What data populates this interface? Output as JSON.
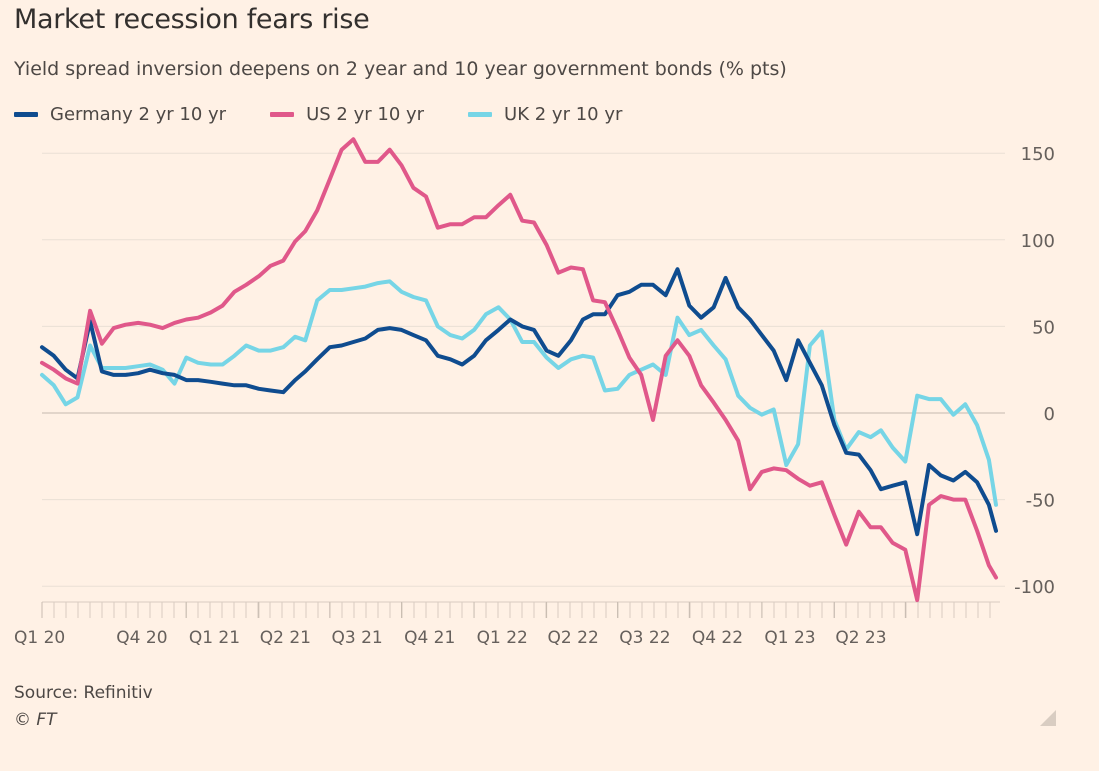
{
  "header": {
    "title": "Market recession fears rise",
    "subtitle": "Yield spread inversion deepens on 2 year and 10 year government bonds (% pts)"
  },
  "footer": {
    "source": "Source: Refinitiv",
    "copyright": "© FT"
  },
  "chart_data": {
    "type": "line",
    "title": "Market recession fears rise",
    "subtitle": "Yield spread inversion deepens on 2 year and 10 year government bonds (% pts)",
    "xlabel": "",
    "ylabel": "",
    "ylim": [
      -110,
      160
    ],
    "yticks": [
      150,
      100,
      50,
      0,
      -50,
      -100
    ],
    "grid": true,
    "legend_position": "top-left",
    "y_axis_side": "right",
    "xticks": [
      {
        "label": "Q1 20",
        "date": "2020-04-01"
      },
      {
        "label": "Q4 20",
        "date": "2020-10-01"
      },
      {
        "label": "Q1 21",
        "date": "2021-01-01"
      },
      {
        "label": "Q2 21",
        "date": "2021-04-01"
      },
      {
        "label": "Q3 21",
        "date": "2021-07-01"
      },
      {
        "label": "Q4 21",
        "date": "2021-10-01"
      },
      {
        "label": "Q1 22",
        "date": "2022-01-01"
      },
      {
        "label": "Q2 22",
        "date": "2022-04-01"
      },
      {
        "label": "Q3 22",
        "date": "2022-07-01"
      },
      {
        "label": "Q4 22",
        "date": "2022-10-01"
      },
      {
        "label": "Q1 23",
        "date": "2023-01-01"
      },
      {
        "label": "Q2 23",
        "date": "2023-04-01"
      }
    ],
    "x": [
      "2020-04-01",
      "2020-04-16",
      "2020-05-01",
      "2020-05-16",
      "2020-06-01",
      "2020-06-16",
      "2020-07-01",
      "2020-07-16",
      "2020-08-01",
      "2020-08-16",
      "2020-09-01",
      "2020-09-16",
      "2020-10-01",
      "2020-10-16",
      "2020-11-01",
      "2020-11-16",
      "2020-12-01",
      "2020-12-16",
      "2021-01-01",
      "2021-01-16",
      "2021-02-01",
      "2021-02-16",
      "2021-03-01",
      "2021-03-16",
      "2021-04-01",
      "2021-04-16",
      "2021-05-01",
      "2021-05-16",
      "2021-06-01",
      "2021-06-16",
      "2021-07-01",
      "2021-07-16",
      "2021-08-01",
      "2021-08-16",
      "2021-09-01",
      "2021-09-16",
      "2021-10-01",
      "2021-10-16",
      "2021-11-01",
      "2021-11-16",
      "2021-12-01",
      "2021-12-16",
      "2022-01-01",
      "2022-01-16",
      "2022-02-01",
      "2022-02-16",
      "2022-03-01",
      "2022-03-16",
      "2022-04-01",
      "2022-04-16",
      "2022-05-01",
      "2022-05-16",
      "2022-06-01",
      "2022-06-16",
      "2022-07-01",
      "2022-07-16",
      "2022-08-01",
      "2022-08-16",
      "2022-09-01",
      "2022-09-16",
      "2022-10-01",
      "2022-10-16",
      "2022-11-01",
      "2022-11-16",
      "2022-12-01",
      "2022-12-16",
      "2023-01-01",
      "2023-01-16",
      "2023-02-01",
      "2023-02-16",
      "2023-03-01",
      "2023-03-16",
      "2023-04-01",
      "2023-04-16",
      "2023-05-01",
      "2023-05-16",
      "2023-06-01",
      "2023-06-16",
      "2023-07-01",
      "2023-07-16",
      "2023-07-25"
    ],
    "series": [
      {
        "name": "Germany 2 yr 10 yr",
        "color": "#0f4c8f",
        "values": [
          38,
          33,
          25,
          20,
          53,
          24,
          22,
          22,
          23,
          25,
          23,
          22,
          19,
          19,
          18,
          17,
          16,
          16,
          14,
          13,
          12,
          19,
          24,
          31,
          38,
          39,
          41,
          43,
          48,
          49,
          48,
          45,
          42,
          33,
          31,
          28,
          33,
          42,
          48,
          54,
          50,
          48,
          36,
          33,
          42,
          54,
          57,
          57,
          68,
          70,
          74,
          74,
          68,
          83,
          62,
          55,
          61,
          78,
          61,
          54,
          45,
          36,
          19,
          42,
          29,
          16,
          -7,
          -23,
          -24,
          -33,
          -44,
          -42,
          -40,
          -70,
          -30,
          -36,
          -39,
          -34,
          -40,
          -53,
          -68
        ]
      },
      {
        "name": "US 2 yr 10 yr",
        "color": "#e0588a",
        "values": [
          29,
          25,
          20,
          17,
          59,
          40,
          49,
          51,
          52,
          51,
          49,
          52,
          54,
          55,
          58,
          62,
          70,
          74,
          79,
          85,
          88,
          99,
          105,
          117,
          135,
          152,
          158,
          145,
          145,
          152,
          143,
          130,
          125,
          107,
          109,
          109,
          113,
          113,
          120,
          126,
          111,
          110,
          97,
          81,
          84,
          83,
          65,
          64,
          48,
          32,
          22,
          -4,
          33,
          42,
          33,
          16,
          6,
          -4,
          -16,
          -44,
          -34,
          -32,
          -33,
          -38,
          -42,
          -40,
          -59,
          -76,
          -57,
          -66,
          -66,
          -75,
          -79,
          -108,
          -53,
          -48,
          -50,
          -50,
          -68,
          -88,
          -95
        ]
      },
      {
        "name": "UK 2 yr 10 yr",
        "color": "#76d5e6",
        "values": [
          22,
          16,
          5,
          9,
          39,
          26,
          26,
          26,
          27,
          28,
          25,
          17,
          32,
          29,
          28,
          28,
          33,
          39,
          36,
          36,
          38,
          44,
          42,
          65,
          71,
          71,
          72,
          73,
          75,
          76,
          70,
          67,
          65,
          50,
          45,
          43,
          48,
          57,
          61,
          54,
          41,
          41,
          32,
          26,
          31,
          33,
          32,
          13,
          14,
          22,
          25,
          28,
          22,
          55,
          45,
          48,
          39,
          31,
          10,
          3,
          -1,
          2,
          -30,
          -18,
          39,
          47,
          -4,
          -21,
          -11,
          -14,
          -10,
          -20,
          -28,
          10,
          8,
          8,
          -1,
          5,
          -7,
          -27,
          -53
        ]
      }
    ]
  }
}
